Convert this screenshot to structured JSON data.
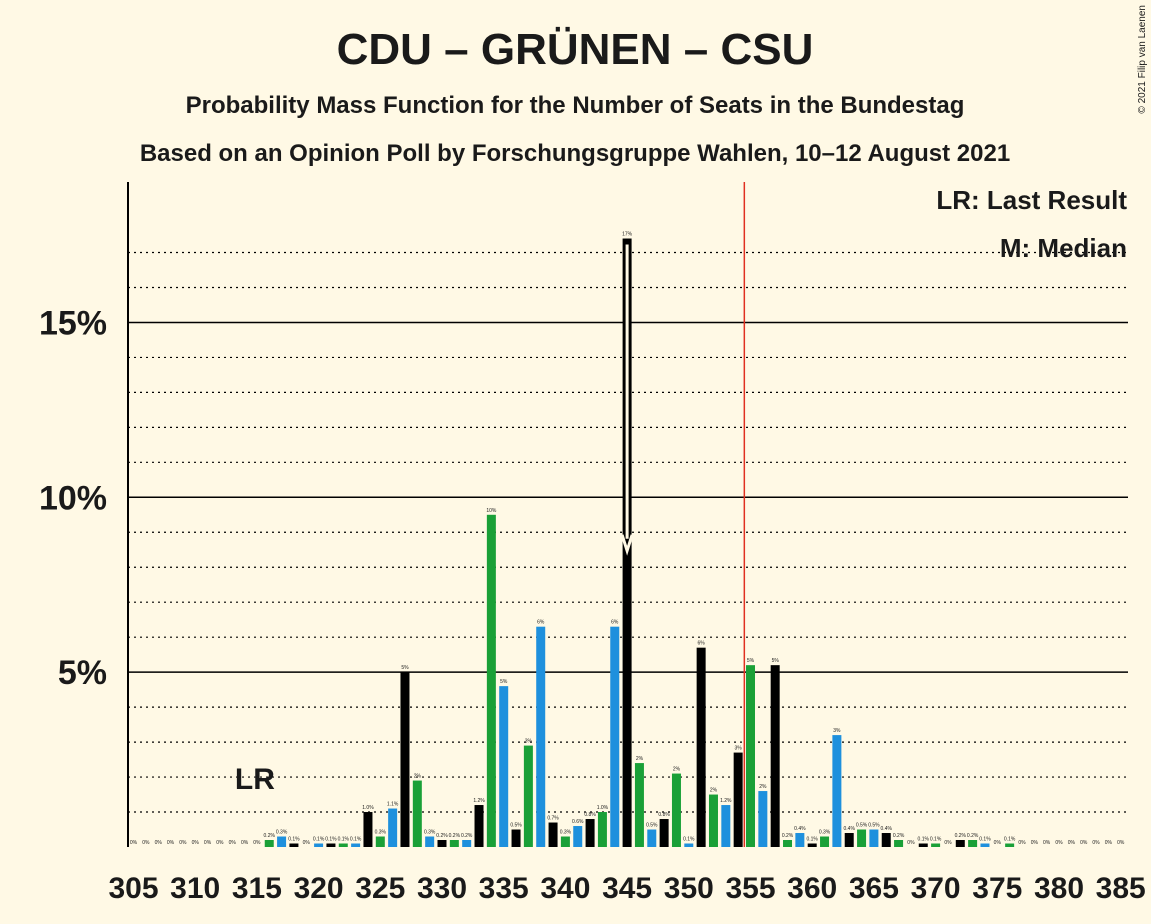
{
  "chart_data": {
    "type": "bar",
    "title": "CDU – GRÜNEN – CSU",
    "subtitle": "Probability Mass Function for the Number of Seats in the Bundestag",
    "subtitle2": "Based on an Opinion Poll by Forschungsgruppe Wahlen, 10–12 August 2021",
    "copyright": "© 2021 Filip van Laenen",
    "legend": {
      "lr": "LR: Last Result",
      "median": "M: Median",
      "placement": "top-right"
    },
    "lr_label": "LR",
    "last_result_seat": 315,
    "majority_seat": 355,
    "median_seat": 345,
    "ylim": [
      0,
      17.5
    ],
    "yticks": [
      {
        "value": 5,
        "label": "5%"
      },
      {
        "value": 10,
        "label": "10%"
      },
      {
        "value": 15,
        "label": "15%"
      }
    ],
    "xtick_labels": [
      "305",
      "310",
      "315",
      "320",
      "325",
      "330",
      "335",
      "340",
      "345",
      "350",
      "355",
      "360",
      "365",
      "370",
      "375",
      "380",
      "385"
    ],
    "colors": {
      "black": "#000000",
      "green": "#1AA037",
      "blue": "#1E90DD",
      "majority_line": "#E03020",
      "background": "#FFF9E5"
    },
    "bars": [
      {
        "seat": 305,
        "value": 0,
        "label": "0%",
        "color": "black"
      },
      {
        "seat": 306,
        "value": 0,
        "label": "0%",
        "color": "black"
      },
      {
        "seat": 307,
        "value": 0,
        "label": "0%",
        "color": "black"
      },
      {
        "seat": 308,
        "value": 0,
        "label": "0%",
        "color": "black"
      },
      {
        "seat": 309,
        "value": 0,
        "label": "0%",
        "color": "black"
      },
      {
        "seat": 310,
        "value": 0,
        "label": "0%",
        "color": "black"
      },
      {
        "seat": 311,
        "value": 0,
        "label": "0%",
        "color": "black"
      },
      {
        "seat": 312,
        "value": 0,
        "label": "0%",
        "color": "black"
      },
      {
        "seat": 313,
        "value": 0,
        "label": "0%",
        "color": "black"
      },
      {
        "seat": 314,
        "value": 0,
        "label": "0%",
        "color": "black"
      },
      {
        "seat": 315,
        "value": 0,
        "label": "0%",
        "color": "black"
      },
      {
        "seat": 316,
        "value": 0.2,
        "label": "0.2%",
        "color": "green"
      },
      {
        "seat": 317,
        "value": 0.3,
        "label": "0.3%",
        "color": "blue"
      },
      {
        "seat": 318,
        "value": 0.1,
        "label": "0.1%",
        "color": "black"
      },
      {
        "seat": 319,
        "value": 0,
        "label": "0%",
        "color": "green"
      },
      {
        "seat": 320,
        "value": 0.1,
        "label": "0.1%",
        "color": "blue"
      },
      {
        "seat": 321,
        "value": 0.1,
        "label": "0.1%",
        "color": "black"
      },
      {
        "seat": 322,
        "value": 0.1,
        "label": "0.1%",
        "color": "green"
      },
      {
        "seat": 323,
        "value": 0.1,
        "label": "0.1%",
        "color": "blue"
      },
      {
        "seat": 324,
        "value": 1.0,
        "label": "1.0%",
        "color": "black"
      },
      {
        "seat": 325,
        "value": 0.3,
        "label": "0.3%",
        "color": "green"
      },
      {
        "seat": 326,
        "value": 1.1,
        "label": "1.1%",
        "color": "blue"
      },
      {
        "seat": 327,
        "value": 5.0,
        "label": "5%",
        "color": "black"
      },
      {
        "seat": 328,
        "value": 1.9,
        "label": "2%",
        "color": "green"
      },
      {
        "seat": 329,
        "value": 0.3,
        "label": "0.3%",
        "color": "blue"
      },
      {
        "seat": 330,
        "value": 0.2,
        "label": "0.2%",
        "color": "black"
      },
      {
        "seat": 331,
        "value": 0.2,
        "label": "0.2%",
        "color": "green"
      },
      {
        "seat": 332,
        "value": 0.2,
        "label": "0.2%",
        "color": "blue"
      },
      {
        "seat": 333,
        "value": 1.2,
        "label": "1.2%",
        "color": "black"
      },
      {
        "seat": 334,
        "value": 9.5,
        "label": "10%",
        "color": "green"
      },
      {
        "seat": 335,
        "value": 4.6,
        "label": "5%",
        "color": "blue"
      },
      {
        "seat": 336,
        "value": 0.5,
        "label": "0.5%",
        "color": "black"
      },
      {
        "seat": 337,
        "value": 2.9,
        "label": "3%",
        "color": "green"
      },
      {
        "seat": 338,
        "value": 6.3,
        "label": "6%",
        "color": "blue"
      },
      {
        "seat": 339,
        "value": 0.7,
        "label": "0.7%",
        "color": "black"
      },
      {
        "seat": 340,
        "value": 0.3,
        "label": "0.3%",
        "color": "green"
      },
      {
        "seat": 341,
        "value": 0.6,
        "label": "0.6%",
        "color": "blue"
      },
      {
        "seat": 342,
        "value": 0.8,
        "label": "0.8%",
        "color": "black"
      },
      {
        "seat": 343,
        "value": 1.0,
        "label": "1.0%",
        "color": "green"
      },
      {
        "seat": 344,
        "value": 6.3,
        "label": "6%",
        "color": "blue"
      },
      {
        "seat": 345,
        "value": 17.4,
        "label": "17%",
        "color": "black"
      },
      {
        "seat": 346,
        "value": 2.4,
        "label": "2%",
        "color": "green"
      },
      {
        "seat": 347,
        "value": 0.5,
        "label": "0.5%",
        "color": "blue"
      },
      {
        "seat": 348,
        "value": 0.8,
        "label": "0.8%",
        "color": "black"
      },
      {
        "seat": 349,
        "value": 2.1,
        "label": "2%",
        "color": "green"
      },
      {
        "seat": 350,
        "value": 0.1,
        "label": "0.1%",
        "color": "blue"
      },
      {
        "seat": 351,
        "value": 5.7,
        "label": "6%",
        "color": "black"
      },
      {
        "seat": 352,
        "value": 1.5,
        "label": "2%",
        "color": "green"
      },
      {
        "seat": 353,
        "value": 1.2,
        "label": "1.2%",
        "color": "blue"
      },
      {
        "seat": 354,
        "value": 2.7,
        "label": "3%",
        "color": "black"
      },
      {
        "seat": 355,
        "value": 5.2,
        "label": "5%",
        "color": "green"
      },
      {
        "seat": 356,
        "value": 1.6,
        "label": "2%",
        "color": "blue"
      },
      {
        "seat": 357,
        "value": 5.2,
        "label": "5%",
        "color": "black"
      },
      {
        "seat": 358,
        "value": 0.2,
        "label": "0.2%",
        "color": "green"
      },
      {
        "seat": 359,
        "value": 0.4,
        "label": "0.4%",
        "color": "blue"
      },
      {
        "seat": 360,
        "value": 0.1,
        "label": "0.1%",
        "color": "black"
      },
      {
        "seat": 361,
        "value": 0.3,
        "label": "0.3%",
        "color": "green"
      },
      {
        "seat": 362,
        "value": 3.2,
        "label": "3%",
        "color": "blue"
      },
      {
        "seat": 363,
        "value": 0.4,
        "label": "0.4%",
        "color": "black"
      },
      {
        "seat": 364,
        "value": 0.5,
        "label": "0.5%",
        "color": "green"
      },
      {
        "seat": 365,
        "value": 0.5,
        "label": "0.5%",
        "color": "blue"
      },
      {
        "seat": 366,
        "value": 0.4,
        "label": "0.4%",
        "color": "black"
      },
      {
        "seat": 367,
        "value": 0.2,
        "label": "0.2%",
        "color": "green"
      },
      {
        "seat": 368,
        "value": 0,
        "label": "0%",
        "color": "blue"
      },
      {
        "seat": 369,
        "value": 0.1,
        "label": "0.1%",
        "color": "black"
      },
      {
        "seat": 370,
        "value": 0.1,
        "label": "0.1%",
        "color": "green"
      },
      {
        "seat": 371,
        "value": 0,
        "label": "0%",
        "color": "blue"
      },
      {
        "seat": 372,
        "value": 0.2,
        "label": "0.2%",
        "color": "black"
      },
      {
        "seat": 373,
        "value": 0.2,
        "label": "0.2%",
        "color": "green"
      },
      {
        "seat": 374,
        "value": 0.1,
        "label": "0.1%",
        "color": "blue"
      },
      {
        "seat": 375,
        "value": 0,
        "label": "0%",
        "color": "black"
      },
      {
        "seat": 376,
        "value": 0.1,
        "label": "0.1%",
        "color": "green"
      },
      {
        "seat": 377,
        "value": 0,
        "label": "0%",
        "color": "blue"
      },
      {
        "seat": 378,
        "value": 0,
        "label": "0%",
        "color": "black"
      },
      {
        "seat": 379,
        "value": 0,
        "label": "0%",
        "color": "green"
      },
      {
        "seat": 380,
        "value": 0,
        "label": "0%",
        "color": "blue"
      },
      {
        "seat": 381,
        "value": 0,
        "label": "0%",
        "color": "black"
      },
      {
        "seat": 382,
        "value": 0,
        "label": "0%",
        "color": "green"
      },
      {
        "seat": 383,
        "value": 0,
        "label": "0%",
        "color": "blue"
      },
      {
        "seat": 384,
        "value": 0,
        "label": "0%",
        "color": "black"
      },
      {
        "seat": 385,
        "value": 0,
        "label": "0%",
        "color": "green"
      }
    ]
  }
}
